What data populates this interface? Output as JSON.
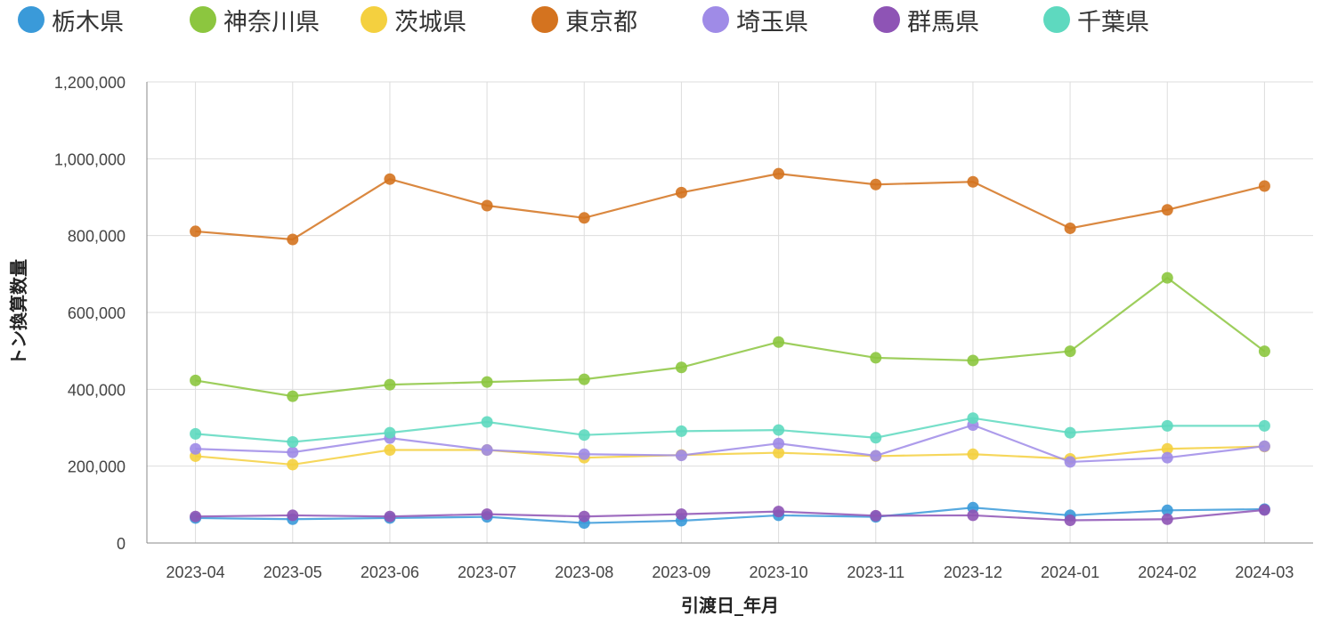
{
  "chart_data": {
    "type": "line",
    "title": "",
    "xlabel": "引渡日_年月",
    "ylabel": "トン換算数量",
    "ylim": [
      0,
      1200000
    ],
    "yticks": [
      0,
      200000,
      400000,
      600000,
      800000,
      1000000,
      1200000
    ],
    "ytick_labels": [
      "0",
      "200,000",
      "400,000",
      "600,000",
      "800,000",
      "1,000,000",
      "1,200,000"
    ],
    "grid": true,
    "legend_position": "top",
    "categories": [
      "2023-04",
      "2023-05",
      "2023-06",
      "2023-07",
      "2023-08",
      "2023-09",
      "2023-10",
      "2023-11",
      "2023-12",
      "2024-01",
      "2024-02",
      "2024-03"
    ],
    "series": [
      {
        "name": "栃木県",
        "color": "#3a9ad9",
        "values": [
          65000,
          62000,
          65000,
          68000,
          52000,
          58000,
          72000,
          68000,
          92000,
          72000,
          85000,
          88000
        ]
      },
      {
        "name": "神奈川県",
        "color": "#8cc63f",
        "values": [
          423000,
          382000,
          412000,
          419000,
          426000,
          457000,
          523000,
          482000,
          475000,
          499000,
          690000,
          499000
        ]
      },
      {
        "name": "茨城県",
        "color": "#f4d03f",
        "values": [
          226000,
          204000,
          242000,
          242000,
          222000,
          229000,
          235000,
          226000,
          231000,
          219000,
          245000,
          251000
        ]
      },
      {
        "name": "東京都",
        "color": "#d4731f",
        "values": [
          811000,
          790000,
          947000,
          878000,
          846000,
          912000,
          961000,
          933000,
          940000,
          819000,
          867000,
          929000
        ]
      },
      {
        "name": "埼玉県",
        "color": "#9f8be7",
        "values": [
          245000,
          236000,
          273000,
          242000,
          231000,
          228000,
          259000,
          227000,
          307000,
          211000,
          222000,
          252000
        ]
      },
      {
        "name": "群馬県",
        "color": "#8e54b5",
        "values": [
          69000,
          72000,
          69000,
          75000,
          69000,
          75000,
          82000,
          71000,
          72000,
          59000,
          62000,
          86000
        ]
      },
      {
        "name": "千葉県",
        "color": "#5ed9bf",
        "values": [
          284000,
          263000,
          287000,
          315000,
          281000,
          291000,
          294000,
          274000,
          325000,
          287000,
          305000,
          305000
        ]
      }
    ]
  }
}
